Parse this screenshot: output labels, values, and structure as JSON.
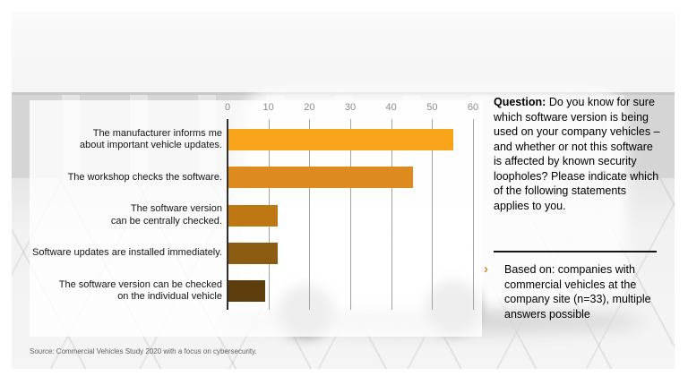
{
  "slide": {
    "question": {
      "label": "Question:",
      "text": " Do you know for sure which software version is being used on your company vehicles – and whether or not this software is affected by known security loopholes? Please indicate which of the following statements applies to you."
    },
    "note": {
      "bullet": "›",
      "text": "Based on: companies with commercial vehicles at the company site (n=33), multiple answers possible"
    },
    "source": "Source: Commercial Vehicles Study 2020 with a focus on cybersecurity."
  },
  "colors": {
    "axis_line": "#2f2f2f",
    "gridline": "#a3a3a3",
    "tick_label": "#8a8a8a",
    "chevron": "#cc9333"
  },
  "chart_data": {
    "type": "bar",
    "orientation": "horizontal",
    "title": "",
    "xlabel": "",
    "ylabel": "",
    "categories": [
      "The manufacturer informs me\nabout important vehicle updates.",
      "The workshop checks the software.",
      "The software version\ncan be centrally checked.",
      "Software updates are installed immediately.",
      "The software version can be checked\non the individual vehicle"
    ],
    "values": [
      55,
      45,
      12,
      12,
      9
    ],
    "bar_colors": [
      "#F9A51B",
      "#DD8A1E",
      "#BF7714",
      "#8C5C12",
      "#5E3D0C"
    ],
    "xlim": [
      0,
      60
    ],
    "xticks": [
      0,
      10,
      20,
      30,
      40,
      50,
      60
    ],
    "grid": "vertical",
    "legend": false
  }
}
